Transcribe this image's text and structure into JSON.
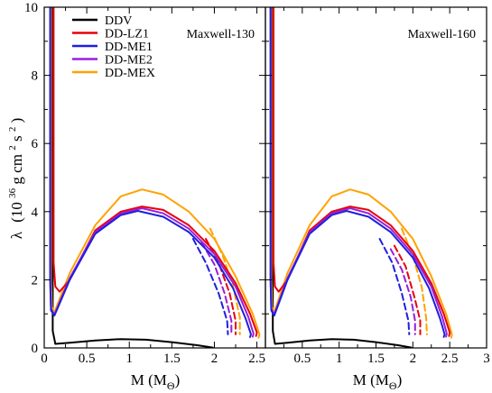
{
  "chart_data": {
    "type": "line",
    "ylabel": "λ",
    "ylabel_units_prefix": "(10",
    "ylabel_units_exp": "36",
    "ylabel_units_mid": " g cm",
    "ylabel_units_exp2": "2",
    "ylabel_units_s": " s",
    "ylabel_units_exp3": "2",
    "ylabel_units_suffix": ")",
    "xlabel_prefix": "M (M",
    "xlabel_sub": "Θ",
    "xlabel_suffix": ")",
    "ylim": [
      0,
      10
    ],
    "yticks": [
      "0",
      "2",
      "4",
      "6",
      "8",
      "10"
    ],
    "legend_placement": "top-left",
    "legend": [
      {
        "name": "DDV",
        "color": "#000000"
      },
      {
        "name": "DD-LZ1",
        "color": "#e8000b"
      },
      {
        "name": "DD-ME1",
        "color": "#1f1fe0"
      },
      {
        "name": "DD-ME2",
        "color": "#9a1fd8"
      },
      {
        "name": "DD-MEX",
        "color": "#ffa200"
      }
    ],
    "panels": [
      {
        "title": "Maxwell-130",
        "xlim": [
          0,
          2.6
        ],
        "xticks": [
          "0",
          "0.5",
          "1",
          "1.5",
          "2",
          "2.5"
        ],
        "series": [
          {
            "color": "#000000",
            "dashed": false,
            "points": [
              [
                0.1,
                10
              ],
              [
                0.1,
                0.5
              ],
              [
                0.13,
                0.12
              ],
              [
                0.3,
                0.15
              ],
              [
                0.6,
                0.22
              ],
              [
                0.9,
                0.26
              ],
              [
                1.2,
                0.24
              ],
              [
                1.5,
                0.17
              ],
              [
                1.8,
                0.08
              ],
              [
                1.98,
                0.01
              ]
            ]
          },
          {
            "color": "#ffa200",
            "dashed": false,
            "points": [
              [
                0.08,
                10
              ],
              [
                0.08,
                2
              ],
              [
                0.09,
                1.2
              ],
              [
                0.12,
                1.05
              ],
              [
                0.3,
                2.2
              ],
              [
                0.6,
                3.6
              ],
              [
                0.9,
                4.45
              ],
              [
                1.15,
                4.65
              ],
              [
                1.4,
                4.5
              ],
              [
                1.7,
                4.0
              ],
              [
                2.0,
                3.2
              ],
              [
                2.25,
                2.1
              ],
              [
                2.45,
                1.0
              ],
              [
                2.53,
                0.4
              ],
              [
                2.52,
                0.3
              ]
            ]
          },
          {
            "color": "#ffa200",
            "dashed": true,
            "points": [
              [
                1.95,
                3.5
              ],
              [
                2.1,
                2.7
              ],
              [
                2.22,
                1.8
              ],
              [
                2.3,
                0.9
              ],
              [
                2.3,
                0.4
              ]
            ]
          },
          {
            "color": "#e8000b",
            "dashed": false,
            "points": [
              [
                0.11,
                10
              ],
              [
                0.11,
                2.5
              ],
              [
                0.13,
                1.8
              ],
              [
                0.18,
                1.65
              ],
              [
                0.3,
                2.0
              ],
              [
                0.6,
                3.45
              ],
              [
                0.9,
                4.0
              ],
              [
                1.15,
                4.15
              ],
              [
                1.4,
                4.05
              ],
              [
                1.7,
                3.6
              ],
              [
                2.0,
                2.85
              ],
              [
                2.25,
                1.9
              ],
              [
                2.42,
                1.0
              ],
              [
                2.5,
                0.45
              ],
              [
                2.49,
                0.35
              ]
            ]
          },
          {
            "color": "#e8000b",
            "dashed": true,
            "points": [
              [
                1.9,
                3.2
              ],
              [
                2.05,
                2.5
              ],
              [
                2.18,
                1.6
              ],
              [
                2.25,
                0.8
              ],
              [
                2.25,
                0.4
              ]
            ]
          },
          {
            "color": "#9a1fd8",
            "dashed": false,
            "points": [
              [
                0.07,
                10
              ],
              [
                0.07,
                2
              ],
              [
                0.08,
                1.15
              ],
              [
                0.12,
                0.98
              ],
              [
                0.3,
                2.05
              ],
              [
                0.6,
                3.4
              ],
              [
                0.9,
                3.95
              ],
              [
                1.15,
                4.1
              ],
              [
                1.4,
                3.95
              ],
              [
                1.7,
                3.5
              ],
              [
                2.0,
                2.75
              ],
              [
                2.25,
                1.8
              ],
              [
                2.4,
                0.9
              ],
              [
                2.46,
                0.42
              ],
              [
                2.45,
                0.33
              ]
            ]
          },
          {
            "color": "#9a1fd8",
            "dashed": true,
            "points": [
              [
                1.85,
                3.1
              ],
              [
                2.0,
                2.45
              ],
              [
                2.12,
                1.6
              ],
              [
                2.2,
                0.8
              ],
              [
                2.2,
                0.4
              ]
            ]
          },
          {
            "color": "#1f1fe0",
            "dashed": false,
            "points": [
              [
                0.07,
                10
              ],
              [
                0.07,
                2
              ],
              [
                0.08,
                1.1
              ],
              [
                0.12,
                0.95
              ],
              [
                0.3,
                2.0
              ],
              [
                0.6,
                3.35
              ],
              [
                0.9,
                3.9
              ],
              [
                1.1,
                4.02
              ],
              [
                1.4,
                3.85
              ],
              [
                1.7,
                3.4
              ],
              [
                2.0,
                2.65
              ],
              [
                2.22,
                1.75
              ],
              [
                2.37,
                0.85
              ],
              [
                2.43,
                0.4
              ],
              [
                2.42,
                0.32
              ]
            ]
          },
          {
            "color": "#1f1fe0",
            "dashed": true,
            "points": [
              [
                1.75,
                3.2
              ],
              [
                1.9,
                2.5
              ],
              [
                2.05,
                1.6
              ],
              [
                2.15,
                0.8
              ],
              [
                2.16,
                0.4
              ]
            ]
          }
        ]
      },
      {
        "title": "Maxwell-160",
        "xlim": [
          0,
          3
        ],
        "xticks": [
          "0",
          "0.5",
          "1",
          "1.5",
          "2",
          "2.5",
          "3"
        ],
        "series": [
          {
            "color": "#000000",
            "dashed": false,
            "points": [
              [
                0.1,
                10
              ],
              [
                0.1,
                0.5
              ],
              [
                0.13,
                0.12
              ],
              [
                0.3,
                0.15
              ],
              [
                0.6,
                0.22
              ],
              [
                0.9,
                0.26
              ],
              [
                1.2,
                0.24
              ],
              [
                1.5,
                0.17
              ],
              [
                1.8,
                0.08
              ],
              [
                1.98,
                0.01
              ]
            ]
          },
          {
            "color": "#ffa200",
            "dashed": false,
            "points": [
              [
                0.08,
                10
              ],
              [
                0.08,
                2
              ],
              [
                0.09,
                1.2
              ],
              [
                0.12,
                1.05
              ],
              [
                0.3,
                2.2
              ],
              [
                0.6,
                3.6
              ],
              [
                0.9,
                4.45
              ],
              [
                1.15,
                4.65
              ],
              [
                1.4,
                4.5
              ],
              [
                1.7,
                4.0
              ],
              [
                2.0,
                3.2
              ],
              [
                2.25,
                2.1
              ],
              [
                2.45,
                1.0
              ],
              [
                2.53,
                0.4
              ],
              [
                2.52,
                0.3
              ]
            ]
          },
          {
            "color": "#ffa200",
            "dashed": true,
            "points": [
              [
                1.85,
                3.5
              ],
              [
                2.0,
                2.7
              ],
              [
                2.12,
                1.8
              ],
              [
                2.18,
                0.9
              ],
              [
                2.19,
                0.4
              ]
            ]
          },
          {
            "color": "#e8000b",
            "dashed": false,
            "points": [
              [
                0.11,
                10
              ],
              [
                0.11,
                2.5
              ],
              [
                0.13,
                1.8
              ],
              [
                0.18,
                1.65
              ],
              [
                0.3,
                2.0
              ],
              [
                0.6,
                3.45
              ],
              [
                0.9,
                4.0
              ],
              [
                1.15,
                4.15
              ],
              [
                1.4,
                4.05
              ],
              [
                1.7,
                3.6
              ],
              [
                2.0,
                2.85
              ],
              [
                2.25,
                1.9
              ],
              [
                2.42,
                1.0
              ],
              [
                2.5,
                0.45
              ],
              [
                2.49,
                0.35
              ]
            ]
          },
          {
            "color": "#e8000b",
            "dashed": true,
            "points": [
              [
                1.75,
                3.0
              ],
              [
                1.9,
                2.4
              ],
              [
                2.02,
                1.5
              ],
              [
                2.1,
                0.8
              ],
              [
                2.1,
                0.4
              ]
            ]
          },
          {
            "color": "#9a1fd8",
            "dashed": false,
            "points": [
              [
                0.07,
                10
              ],
              [
                0.07,
                2
              ],
              [
                0.08,
                1.15
              ],
              [
                0.12,
                0.98
              ],
              [
                0.3,
                2.05
              ],
              [
                0.6,
                3.4
              ],
              [
                0.9,
                3.95
              ],
              [
                1.15,
                4.1
              ],
              [
                1.4,
                3.95
              ],
              [
                1.7,
                3.5
              ],
              [
                2.0,
                2.75
              ],
              [
                2.25,
                1.8
              ],
              [
                2.4,
                0.9
              ],
              [
                2.46,
                0.42
              ],
              [
                2.45,
                0.33
              ]
            ]
          },
          {
            "color": "#9a1fd8",
            "dashed": true,
            "points": [
              [
                1.7,
                2.9
              ],
              [
                1.85,
                2.3
              ],
              [
                1.97,
                1.5
              ],
              [
                2.03,
                0.8
              ],
              [
                2.03,
                0.4
              ]
            ]
          },
          {
            "color": "#1f1fe0",
            "dashed": false,
            "points": [
              [
                0.07,
                10
              ],
              [
                0.07,
                2
              ],
              [
                0.08,
                1.1
              ],
              [
                0.12,
                0.95
              ],
              [
                0.3,
                2.0
              ],
              [
                0.6,
                3.35
              ],
              [
                0.9,
                3.9
              ],
              [
                1.1,
                4.02
              ],
              [
                1.4,
                3.85
              ],
              [
                1.7,
                3.4
              ],
              [
                2.0,
                2.65
              ],
              [
                2.22,
                1.75
              ],
              [
                2.37,
                0.85
              ],
              [
                2.43,
                0.4
              ],
              [
                2.42,
                0.32
              ]
            ]
          },
          {
            "color": "#1f1fe0",
            "dashed": true,
            "points": [
              [
                1.55,
                3.2
              ],
              [
                1.72,
                2.5
              ],
              [
                1.85,
                1.6
              ],
              [
                1.94,
                0.8
              ],
              [
                1.95,
                0.4
              ]
            ]
          }
        ]
      }
    ]
  }
}
